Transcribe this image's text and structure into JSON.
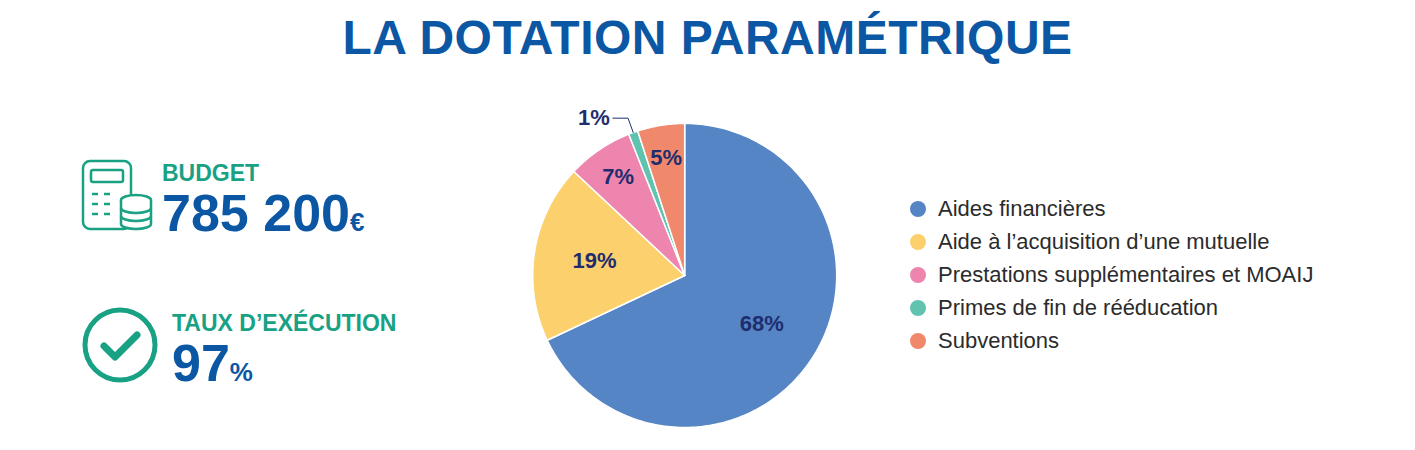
{
  "chart_data": {
    "type": "pie",
    "title": "LA DOTATION PARAMÉTRIQUE",
    "categories": [
      "Aides financières",
      "Aide à l’acquisition d’une mutuelle",
      "Prestations supplémentaires et MOAIJ",
      "Primes de fin de rééducation",
      "Subventions"
    ],
    "values": [
      68,
      19,
      7,
      1,
      5
    ],
    "value_labels": [
      "68%",
      "19%",
      "7%",
      "1%",
      "5%"
    ],
    "colors": [
      "#5585c5",
      "#fcd06c",
      "#ee85ae",
      "#5fc3b0",
      "#f0896c"
    ],
    "data_labels": true,
    "legend": "right"
  },
  "kpis": [
    {
      "label": "BUDGET",
      "value": 785200,
      "value_label": "785 200€"
    },
    {
      "label": "TAUX D’EXÉCUTION",
      "value": 97,
      "value_label": "97%"
    }
  ]
}
